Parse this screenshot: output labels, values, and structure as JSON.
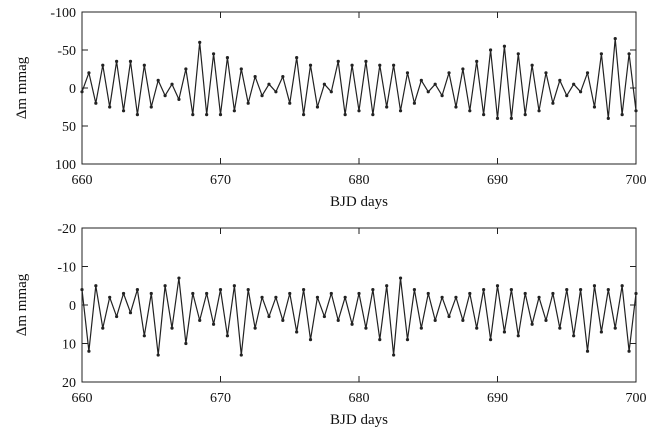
{
  "chart_data": [
    {
      "type": "line",
      "xlabel": "BJD days",
      "ylabel": "Δm mmag",
      "xlim": [
        660,
        700
      ],
      "ylim": [
        -100,
        100
      ],
      "y_inverted": true,
      "grid": false,
      "xticks": [
        660,
        670,
        680,
        690,
        700
      ],
      "xtick_labels": [
        "660",
        "670",
        "680",
        "690",
        "700"
      ],
      "yticks": [
        -100,
        -50,
        0,
        50,
        100
      ],
      "ytick_labels": [
        "-100",
        "-50",
        "0",
        "50",
        "100"
      ],
      "series": [
        {
          "x": [
            660.0,
            660.5,
            661.0,
            661.5,
            662.0,
            662.5,
            663.0,
            663.5,
            664.0,
            664.5,
            665.0,
            665.5,
            666.0,
            666.5,
            667.0,
            667.5,
            668.0,
            668.5,
            669.0,
            669.5,
            670.0,
            670.5,
            671.0,
            671.5,
            672.0,
            672.5,
            673.0,
            673.5,
            674.0,
            674.5,
            675.0,
            675.5,
            676.0,
            676.5,
            677.0,
            677.5,
            678.0,
            678.5,
            679.0,
            679.5,
            680.0,
            680.5,
            681.0,
            681.5,
            682.0,
            682.5,
            683.0,
            683.5,
            684.0,
            684.5,
            685.0,
            685.5,
            686.0,
            686.5,
            687.0,
            687.5,
            688.0,
            688.5,
            689.0,
            689.5,
            690.0,
            690.5,
            691.0,
            691.5,
            692.0,
            692.5,
            693.0,
            693.5,
            694.0,
            694.5,
            695.0,
            695.5,
            696.0,
            696.5,
            697.0,
            697.5,
            698.0,
            698.5,
            699.0,
            699.5,
            700.0
          ],
          "values": [
            5,
            -20,
            20,
            -30,
            25,
            -35,
            30,
            -35,
            35,
            -30,
            25,
            -10,
            10,
            -5,
            15,
            -25,
            35,
            -60,
            35,
            -45,
            35,
            -40,
            30,
            -25,
            20,
            -15,
            10,
            -5,
            5,
            -15,
            20,
            -40,
            35,
            -30,
            25,
            -5,
            5,
            -35,
            35,
            -30,
            30,
            -35,
            35,
            -30,
            25,
            -30,
            30,
            -20,
            20,
            -10,
            5,
            -5,
            10,
            -20,
            25,
            -25,
            30,
            -35,
            35,
            -50,
            40,
            -55,
            40,
            -45,
            35,
            -30,
            30,
            -20,
            20,
            -10,
            10,
            -5,
            5,
            -20,
            25,
            -45,
            40,
            -65,
            35,
            -45,
            30
          ]
        }
      ]
    },
    {
      "type": "line",
      "xlabel": "BJD days",
      "ylabel": "Δm mmag",
      "xlim": [
        660,
        700
      ],
      "ylim": [
        -20,
        20
      ],
      "y_inverted": true,
      "grid": false,
      "xticks": [
        660,
        670,
        680,
        690,
        700
      ],
      "xtick_labels": [
        "660",
        "670",
        "680",
        "690",
        "700"
      ],
      "yticks": [
        -20,
        -10,
        0,
        10,
        20
      ],
      "ytick_labels": [
        "-20",
        "-10",
        "0",
        "10",
        "20"
      ],
      "series": [
        {
          "x": [
            660.0,
            660.5,
            661.0,
            661.5,
            662.0,
            662.5,
            663.0,
            663.5,
            664.0,
            664.5,
            665.0,
            665.5,
            666.0,
            666.5,
            667.0,
            667.5,
            668.0,
            668.5,
            669.0,
            669.5,
            670.0,
            670.5,
            671.0,
            671.5,
            672.0,
            672.5,
            673.0,
            673.5,
            674.0,
            674.5,
            675.0,
            675.5,
            676.0,
            676.5,
            677.0,
            677.5,
            678.0,
            678.5,
            679.0,
            679.5,
            680.0,
            680.5,
            681.0,
            681.5,
            682.0,
            682.5,
            683.0,
            683.5,
            684.0,
            684.5,
            685.0,
            685.5,
            686.0,
            686.5,
            687.0,
            687.5,
            688.0,
            688.5,
            689.0,
            689.5,
            690.0,
            690.5,
            691.0,
            691.5,
            692.0,
            692.5,
            693.0,
            693.5,
            694.0,
            694.5,
            695.0,
            695.5,
            696.0,
            696.5,
            697.0,
            697.5,
            698.0,
            698.5,
            699.0,
            699.5,
            700.0
          ],
          "values": [
            -4,
            12,
            -5,
            6,
            -2,
            3,
            -3,
            2,
            -4,
            8,
            -3,
            13,
            -5,
            6,
            -7,
            10,
            -3,
            4,
            -3,
            5,
            -4,
            8,
            -5,
            13,
            -4,
            6,
            -2,
            3,
            -2,
            4,
            -3,
            7,
            -4,
            9,
            -2,
            3,
            -3,
            4,
            -2,
            5,
            -3,
            6,
            -4,
            9,
            -5,
            13,
            -7,
            9,
            -4,
            6,
            -3,
            4,
            -2,
            3,
            -2,
            4,
            -3,
            6,
            -4,
            9,
            -5,
            7,
            -4,
            8,
            -3,
            5,
            -2,
            4,
            -3,
            6,
            -4,
            8,
            -4,
            12,
            -5,
            7,
            -4,
            6,
            -5,
            12,
            -3
          ]
        }
      ]
    }
  ]
}
